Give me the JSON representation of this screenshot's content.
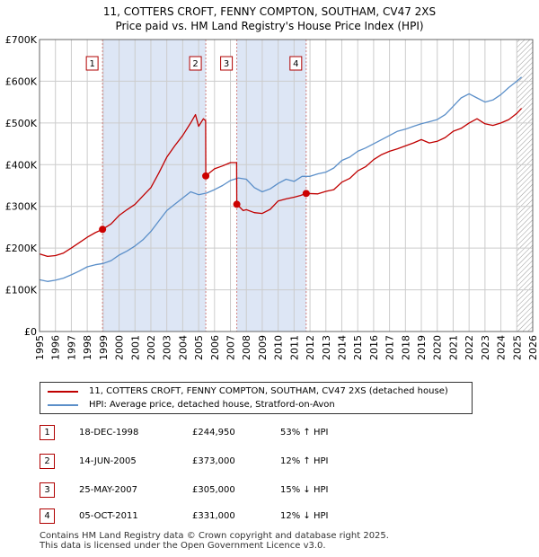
{
  "titles": {
    "line1": "11, COTTERS CROFT, FENNY COMPTON, SOUTHAM, CV47 2XS",
    "line2": "Price paid vs. HM Land Registry's House Price Index (HPI)"
  },
  "colors": {
    "property": "#c00000",
    "hpi": "#5b8fc9",
    "shade": "#dde6f5",
    "marker": "#cc0000",
    "grid": "#cccccc",
    "vline": "#d08080"
  },
  "chart_data": {
    "type": "line",
    "title": "Price paid vs. HM Land Registry's House Price Index (HPI)",
    "xlabel": "",
    "ylabel": "",
    "xlim": [
      1995,
      2026
    ],
    "ylim": [
      0,
      700000
    ],
    "yticks": [
      {
        "value": 0,
        "label": "£0"
      },
      {
        "value": 100000,
        "label": "£100K"
      },
      {
        "value": 200000,
        "label": "£200K"
      },
      {
        "value": 300000,
        "label": "£300K"
      },
      {
        "value": 400000,
        "label": "£400K"
      },
      {
        "value": 500000,
        "label": "£500K"
      },
      {
        "value": 600000,
        "label": "£600K"
      },
      {
        "value": 700000,
        "label": "£700K"
      }
    ],
    "xticks": [
      "1995",
      "1996",
      "1997",
      "1998",
      "1999",
      "2000",
      "2001",
      "2002",
      "2003",
      "2004",
      "2005",
      "2006",
      "2007",
      "2008",
      "2009",
      "2010",
      "2011",
      "2012",
      "2013",
      "2014",
      "2015",
      "2016",
      "2017",
      "2018",
      "2019",
      "2020",
      "2021",
      "2022",
      "2023",
      "2024",
      "2025",
      "2026"
    ],
    "shaded_periods": [
      [
        1998.96,
        2005.45
      ],
      [
        2007.4,
        2011.76
      ]
    ],
    "future_hatch_start": 2025.0,
    "series": [
      {
        "name": "11, COTTERS CROFT, FENNY COMPTON, SOUTHAM, CV47 2XS (detached house)",
        "color": "#c00000",
        "x": [
          1995.0,
          1995.5,
          1996.0,
          1996.5,
          1997.0,
          1997.5,
          1998.0,
          1998.5,
          1998.96,
          1999.5,
          2000.0,
          2000.5,
          2001.0,
          2001.5,
          2002.0,
          2002.5,
          2003.0,
          2003.5,
          2004.0,
          2004.5,
          2004.8,
          2005.0,
          2005.3,
          2005.44,
          2005.45,
          2006.0,
          2006.5,
          2007.0,
          2007.39,
          2007.4,
          2007.8,
          2008.0,
          2008.5,
          2009.0,
          2009.5,
          2010.0,
          2010.5,
          2011.0,
          2011.4,
          2011.76,
          2012.5,
          2013.0,
          2013.5,
          2014.0,
          2014.5,
          2015.0,
          2015.5,
          2016.0,
          2016.5,
          2017.0,
          2017.5,
          2018.0,
          2018.5,
          2019.0,
          2019.5,
          2020.0,
          2020.5,
          2021.0,
          2021.5,
          2022.0,
          2022.5,
          2023.0,
          2023.5,
          2024.0,
          2024.5,
          2025.0,
          2025.3
        ],
        "values": [
          186000,
          180000,
          182000,
          188000,
          200000,
          213000,
          226000,
          237000,
          244950,
          258000,
          278000,
          292000,
          305000,
          325000,
          345000,
          380000,
          418000,
          445000,
          470000,
          500000,
          520000,
          492000,
          510000,
          505000,
          373000,
          390000,
          397000,
          405000,
          405000,
          305000,
          290000,
          292000,
          285000,
          283000,
          293000,
          313000,
          318000,
          322000,
          326000,
          331000,
          330000,
          336000,
          340000,
          358000,
          367000,
          385000,
          395000,
          412000,
          424000,
          432000,
          438000,
          445000,
          452000,
          460000,
          452000,
          456000,
          465000,
          480000,
          487000,
          500000,
          510000,
          498000,
          494000,
          500000,
          508000,
          523000,
          535000
        ]
      },
      {
        "name": "HPI: Average price, detached house, Stratford-on-Avon",
        "color": "#5b8fc9",
        "x": [
          1995.0,
          1995.5,
          1996.0,
          1996.5,
          1997.0,
          1997.5,
          1998.0,
          1998.5,
          1999.0,
          1999.5,
          2000.0,
          2000.5,
          2001.0,
          2001.5,
          2002.0,
          2002.5,
          2003.0,
          2003.5,
          2004.0,
          2004.5,
          2005.0,
          2005.5,
          2006.0,
          2006.5,
          2007.0,
          2007.5,
          2008.0,
          2008.5,
          2009.0,
          2009.5,
          2010.0,
          2010.5,
          2011.0,
          2011.5,
          2012.0,
          2012.5,
          2013.0,
          2013.5,
          2014.0,
          2014.5,
          2015.0,
          2015.5,
          2016.0,
          2016.5,
          2017.0,
          2017.5,
          2018.0,
          2018.5,
          2019.0,
          2019.5,
          2020.0,
          2020.5,
          2021.0,
          2021.5,
          2022.0,
          2022.5,
          2023.0,
          2023.5,
          2024.0,
          2024.5,
          2025.0,
          2025.3
        ],
        "values": [
          124000,
          120000,
          123000,
          128000,
          136000,
          145000,
          155000,
          160000,
          163000,
          170000,
          183000,
          193000,
          205000,
          220000,
          240000,
          265000,
          290000,
          305000,
          320000,
          335000,
          328000,
          332000,
          340000,
          350000,
          362000,
          368000,
          365000,
          345000,
          335000,
          342000,
          355000,
          365000,
          360000,
          372000,
          372000,
          378000,
          382000,
          392000,
          410000,
          418000,
          432000,
          440000,
          450000,
          460000,
          470000,
          480000,
          485000,
          492000,
          498000,
          503000,
          508000,
          520000,
          540000,
          560000,
          570000,
          560000,
          550000,
          555000,
          568000,
          585000,
          600000,
          610000
        ]
      }
    ],
    "transactions": [
      {
        "id": "1",
        "x": 1998.96,
        "price": 244950
      },
      {
        "id": "2",
        "x": 2005.45,
        "price": 373000
      },
      {
        "id": "3",
        "x": 2007.4,
        "price": 305000
      },
      {
        "id": "4",
        "x": 2011.76,
        "price": 331000
      }
    ]
  },
  "legend": {
    "property_label": "11, COTTERS CROFT, FENNY COMPTON, SOUTHAM, CV47 2XS (detached house)",
    "hpi_label": "HPI: Average price, detached house, Stratford-on-Avon"
  },
  "transactions_table": [
    {
      "num": "1",
      "date": "18-DEC-1998",
      "price": "£244,950",
      "hpi": "53% ↑ HPI"
    },
    {
      "num": "2",
      "date": "14-JUN-2005",
      "price": "£373,000",
      "hpi": "12% ↑ HPI"
    },
    {
      "num": "3",
      "date": "25-MAY-2007",
      "price": "£305,000",
      "hpi": "15% ↓ HPI"
    },
    {
      "num": "4",
      "date": "05-OCT-2011",
      "price": "£331,000",
      "hpi": "12% ↓ HPI"
    }
  ],
  "footer": {
    "line1": "Contains HM Land Registry data © Crown copyright and database right 2025.",
    "line2": "This data is licensed under the Open Government Licence v3.0."
  }
}
